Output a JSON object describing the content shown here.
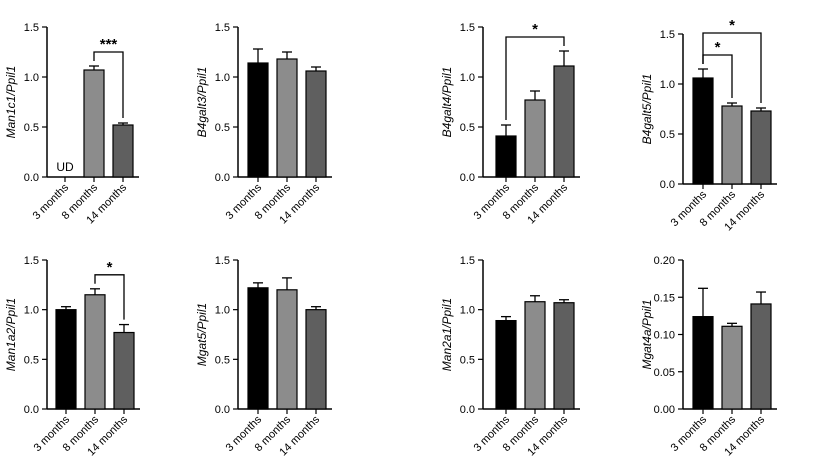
{
  "chart_data": [
    {
      "type": "bar",
      "ylabel": "Man1c1/Ppil1",
      "categories": [
        "3 months",
        "8 months",
        "14 months"
      ],
      "values": [
        0,
        1.07,
        0.52
      ],
      "errors": [
        0,
        0.04,
        0.02
      ],
      "ylim": [
        0,
        1.5
      ],
      "yticks": [
        "0.0",
        "0.5",
        "1.0",
        "1.5"
      ],
      "bar_labels": [
        "UD",
        "",
        ""
      ],
      "significance": [
        {
          "from": 1,
          "to": 2,
          "label": "***"
        }
      ]
    },
    {
      "type": "bar",
      "ylabel": "B4galt3/Ppil1",
      "categories": [
        "3 months",
        "8 months",
        "14 months"
      ],
      "values": [
        1.14,
        1.18,
        1.06
      ],
      "errors": [
        0.14,
        0.07,
        0.04
      ],
      "ylim": [
        0,
        1.5
      ],
      "yticks": [
        "0.0",
        "0.5",
        "1.0",
        "1.5"
      ],
      "significance": []
    },
    {
      "type": "bar",
      "ylabel": "B4galt4/Ppil1",
      "categories": [
        "3 months",
        "8 months",
        "14 months"
      ],
      "values": [
        0.41,
        0.77,
        1.11
      ],
      "errors": [
        0.11,
        0.09,
        0.15
      ],
      "ylim": [
        0,
        1.5
      ],
      "yticks": [
        "0.0",
        "0.5",
        "1.0",
        "1.5"
      ],
      "significance": [
        {
          "from": 0,
          "to": 2,
          "label": "*"
        }
      ]
    },
    {
      "type": "bar",
      "ylabel": "B4galt5/Ppil1",
      "categories": [
        "3 months",
        "8 months",
        "14 months"
      ],
      "values": [
        1.06,
        0.78,
        0.73
      ],
      "errors": [
        0.09,
        0.03,
        0.03
      ],
      "ylim": [
        0,
        1.5
      ],
      "yticks": [
        "0.0",
        "0.5",
        "1.0",
        "1.5"
      ],
      "significance": [
        {
          "from": 0,
          "to": 1,
          "label": "*"
        },
        {
          "from": 0,
          "to": 2,
          "label": "*"
        }
      ]
    },
    {
      "type": "bar",
      "ylabel": "Man1a2/Ppil1",
      "categories": [
        "3 months",
        "8 months",
        "14 months"
      ],
      "values": [
        1.0,
        1.15,
        0.77
      ],
      "errors": [
        0.03,
        0.06,
        0.08
      ],
      "ylim": [
        0,
        1.5
      ],
      "yticks": [
        "0.0",
        "0.5",
        "1.0",
        "1.5"
      ],
      "significance": [
        {
          "from": 1,
          "to": 2,
          "label": "*"
        }
      ]
    },
    {
      "type": "bar",
      "ylabel": "Mgat5/Ppil1",
      "categories": [
        "3 months",
        "8 months",
        "14 months"
      ],
      "values": [
        1.22,
        1.2,
        1.0
      ],
      "errors": [
        0.05,
        0.12,
        0.03
      ],
      "ylim": [
        0,
        1.5
      ],
      "yticks": [
        "0.0",
        "0.5",
        "1.0",
        "1.5"
      ],
      "significance": []
    },
    {
      "type": "bar",
      "ylabel": "Man2a1/Ppil1",
      "categories": [
        "3 months",
        "8 months",
        "14 months"
      ],
      "values": [
        0.89,
        1.08,
        1.07
      ],
      "errors": [
        0.04,
        0.06,
        0.03
      ],
      "ylim": [
        0,
        1.5
      ],
      "yticks": [
        "0.0",
        "0.5",
        "1.0",
        "1.5"
      ],
      "significance": []
    },
    {
      "type": "bar",
      "ylabel": "Mgat4a/Ppil1",
      "categories": [
        "3 months",
        "8 months",
        "14 months"
      ],
      "values": [
        0.124,
        0.111,
        0.141
      ],
      "errors": [
        0.038,
        0.004,
        0.016
      ],
      "ylim": [
        0,
        0.2
      ],
      "yticks": [
        "0.00",
        "0.05",
        "0.10",
        "0.15",
        "0.20"
      ],
      "significance": []
    }
  ],
  "colors": {
    "bars": [
      "#000000",
      "#8c8c8c",
      "#5f5f5f"
    ],
    "axis": "#000000"
  }
}
